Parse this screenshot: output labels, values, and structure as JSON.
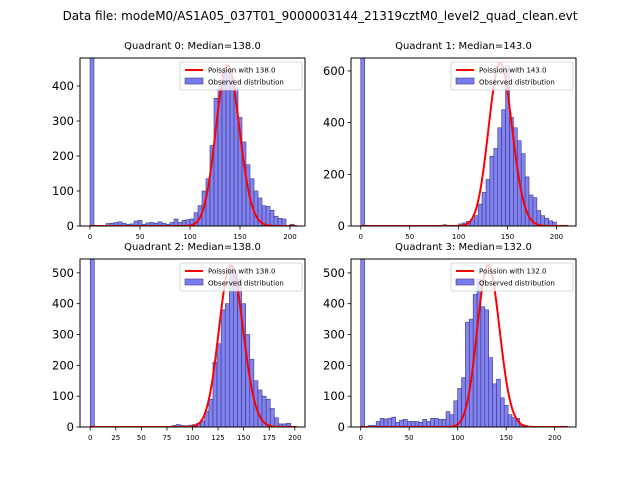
{
  "figure": {
    "suptitle": "Data file: modeM0/AS1A05_037T01_9000003144_21319cztM0_level2_quad_clean.evt"
  },
  "colors": {
    "bar_fill": "#7b7bf0",
    "bar_edge": "#3a3a80",
    "poisson_line": "#ff0000"
  },
  "chart_data": [
    {
      "type": "bar",
      "title": "Quadrant 0: Median=138.0",
      "median": 138.0,
      "legend": [
        "Poission with 138.0",
        "Observed distribution"
      ],
      "legend_position": "top-right",
      "xlim": [
        -10,
        215
      ],
      "ylim": [
        0,
        480
      ],
      "xticks": [
        0,
        50,
        100,
        150,
        200
      ],
      "yticks": [
        0,
        100,
        200,
        300,
        400
      ],
      "bin_width": 4,
      "bin_start": 0,
      "values": [
        480,
        1,
        2,
        1,
        7,
        8,
        10,
        12,
        8,
        5,
        6,
        14,
        16,
        5,
        9,
        10,
        8,
        12,
        8,
        5,
        10,
        20,
        10,
        16,
        18,
        20,
        38,
        58,
        100,
        135,
        230,
        365,
        395,
        440,
        445,
        420,
        395,
        310,
        240,
        175,
        135,
        100,
        80,
        58,
        56,
        45,
        28,
        22,
        20,
        0,
        5
      ],
      "poisson_lambda": 138.0,
      "poisson_peak": 460
    },
    {
      "type": "bar",
      "title": "Quadrant 1: Median=143.0",
      "median": 143.0,
      "legend": [
        "Poission with 143.0",
        "Observed distribution"
      ],
      "legend_position": "top-right",
      "xlim": [
        -10,
        220
      ],
      "ylim": [
        0,
        650
      ],
      "xticks": [
        0,
        50,
        100,
        150,
        200
      ],
      "yticks": [
        0,
        200,
        400,
        600
      ],
      "bin_width": 4,
      "bin_start": 0,
      "values": [
        650,
        0,
        0,
        0,
        0,
        0,
        0,
        0,
        0,
        0,
        0,
        0,
        0,
        0,
        0,
        0,
        0,
        0,
        0,
        2,
        3,
        5,
        2,
        3,
        1,
        8,
        12,
        18,
        25,
        40,
        85,
        130,
        180,
        270,
        300,
        380,
        450,
        620,
        420,
        380,
        330,
        280,
        190,
        120,
        110,
        60,
        40,
        30,
        20,
        15,
        3,
        2
      ],
      "poisson_lambda": 143.0,
      "poisson_peak": 630
    },
    {
      "type": "bar",
      "title": "Quadrant 2: Median=138.0",
      "median": 138.0,
      "legend": [
        "Poission with 138.0",
        "Observed distribution"
      ],
      "legend_position": "top-right",
      "xlim": [
        -10,
        210
      ],
      "ylim": [
        0,
        545
      ],
      "xticks": [
        0,
        25,
        50,
        75,
        100,
        125,
        150,
        175,
        200
      ],
      "yticks": [
        0,
        100,
        200,
        300,
        400,
        500
      ],
      "bin_width": 4,
      "bin_start": 0,
      "values": [
        545,
        0,
        0,
        0,
        0,
        0,
        0,
        0,
        0,
        0,
        0,
        0,
        0,
        0,
        0,
        0,
        0,
        0,
        0,
        1,
        5,
        8,
        5,
        4,
        6,
        8,
        12,
        20,
        50,
        90,
        210,
        270,
        380,
        400,
        520,
        500,
        480,
        400,
        300,
        220,
        150,
        120,
        100,
        90,
        60,
        30,
        10,
        10,
        12,
        2
      ],
      "poisson_lambda": 138.0,
      "poisson_peak": 525
    },
    {
      "type": "bar",
      "title": "Quadrant 3: Median=132.0",
      "median": 132.0,
      "legend": [
        "Poission with 132.0",
        "Observed distribution"
      ],
      "legend_position": "top-right",
      "xlim": [
        -10,
        222
      ],
      "ylim": [
        0,
        545
      ],
      "xticks": [
        0,
        50,
        100,
        150,
        200
      ],
      "yticks": [
        0,
        100,
        200,
        300,
        400,
        500
      ],
      "bin_width": 4,
      "bin_start": 0,
      "values": [
        545,
        2,
        5,
        5,
        18,
        28,
        26,
        28,
        32,
        15,
        22,
        25,
        18,
        18,
        18,
        15,
        25,
        18,
        28,
        28,
        25,
        25,
        50,
        40,
        85,
        125,
        160,
        340,
        350,
        430,
        480,
        390,
        380,
        225,
        140,
        155,
        95,
        70,
        40,
        30,
        28,
        5,
        5,
        0
      ],
      "poisson_lambda": 132.0,
      "poisson_peak": 525
    }
  ]
}
